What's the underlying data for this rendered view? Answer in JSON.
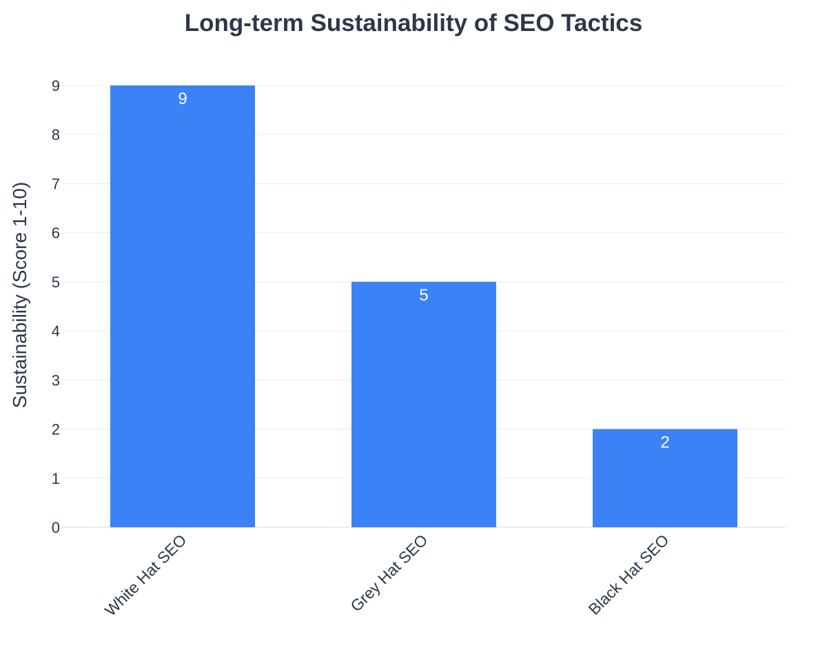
{
  "chart_data": {
    "type": "bar",
    "title": "Long-term Sustainability of SEO Tactics",
    "xlabel": "",
    "ylabel": "Sustainability (Score 1-10)",
    "categories": [
      "White Hat SEO",
      "Grey Hat SEO",
      "Black Hat SEO"
    ],
    "values": [
      9,
      5,
      2
    ],
    "data_labels": [
      "9",
      "5",
      "2"
    ],
    "ylim": [
      0,
      9
    ],
    "yticks": [
      "0",
      "1",
      "2",
      "3",
      "4",
      "5",
      "6",
      "7",
      "8",
      "9"
    ],
    "grid": true,
    "legend": "none",
    "colors": {
      "bar": "#3b82f6",
      "text": "#2d3748",
      "grid": "#e8edf3",
      "label": "#ffffff"
    }
  }
}
